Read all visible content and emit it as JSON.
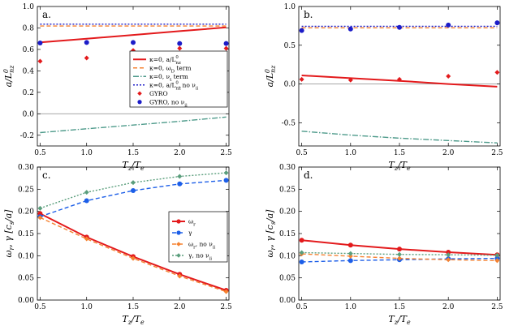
{
  "chart_data": [
    {
      "type": "line",
      "panel_label": "a.",
      "xlabel": "T_z/T_e",
      "ylabel": "a/L_nz^0",
      "xlim": [
        0.47,
        2.53
      ],
      "ylim": [
        -0.3,
        1.0
      ],
      "xticks": [
        "0.5",
        "1.0",
        "1.5",
        "2.0",
        "2.5"
      ],
      "xtick_values": [
        0.5,
        1.0,
        1.5,
        2.0,
        2.5
      ],
      "yticks": [
        "-0.2",
        "0.0",
        "0.2",
        "0.4",
        "0.6",
        "0.8",
        "1.0"
      ],
      "ytick_values": [
        -0.2,
        0.0,
        0.2,
        0.4,
        0.6,
        0.8,
        1.0
      ],
      "zero_line": true,
      "legend": "mid-right",
      "series": [
        {
          "name": "κ=0, a/L_nz^0",
          "style": "solid",
          "color": "#e31a1c",
          "x": [
            0.5,
            1.0,
            1.5,
            2.0,
            2.5
          ],
          "values": [
            0.665,
            0.7,
            0.735,
            0.77,
            0.805
          ]
        },
        {
          "name": "κ=0, ω_D term",
          "style": "dashed",
          "color": "#f58231",
          "x": [
            0.5,
            1.0,
            1.5,
            2.0,
            2.5
          ],
          "values": [
            0.818,
            0.818,
            0.818,
            0.818,
            0.818
          ]
        },
        {
          "name": "κ=0, ν_t term",
          "style": "dashdot",
          "color": "#4d9a8a",
          "x": [
            0.5,
            1.0,
            1.5,
            2.0,
            2.5
          ],
          "values": [
            -0.175,
            -0.14,
            -0.105,
            -0.07,
            -0.03
          ]
        },
        {
          "name": "κ=0, a/L_nz^0, no ν_ii",
          "style": "dotted",
          "color": "#1c1cc8",
          "x": [
            0.5,
            1.0,
            1.5,
            2.0,
            2.5
          ],
          "values": [
            0.835,
            0.835,
            0.835,
            0.835,
            0.835
          ]
        },
        {
          "name": "GYRO",
          "style": "diamond",
          "color": "#e31a1c",
          "x": [
            0.5,
            1.0,
            1.5,
            2.0,
            2.5
          ],
          "values": [
            0.49,
            0.52,
            0.59,
            0.61,
            0.61
          ]
        },
        {
          "name": "GYRO, no ν_ii",
          "style": "circle",
          "color": "#1c1cc8",
          "x": [
            0.5,
            1.0,
            1.5,
            2.0,
            2.5
          ],
          "values": [
            0.66,
            0.665,
            0.665,
            0.655,
            0.655
          ]
        }
      ]
    },
    {
      "type": "line",
      "panel_label": "b.",
      "xlabel": "T_z/T_e",
      "ylabel": "a/L_nz^0",
      "xlim": [
        0.47,
        2.53
      ],
      "ylim": [
        -0.8,
        1.0
      ],
      "xticks": [
        "0.5",
        "1.0",
        "1.5",
        "2.0",
        "2.5"
      ],
      "xtick_values": [
        0.5,
        1.0,
        1.5,
        2.0,
        2.5
      ],
      "yticks": [
        "-0.5",
        "0.0",
        "0.5",
        "1.0"
      ],
      "ytick_values": [
        -0.5,
        0.0,
        0.5,
        1.0
      ],
      "zero_line": true,
      "series": [
        {
          "name": "κ=0, a/L_nz^0",
          "style": "solid",
          "color": "#e31a1c",
          "x": [
            0.5,
            1.0,
            1.5,
            2.0,
            2.5
          ],
          "values": [
            0.11,
            0.075,
            0.04,
            0.0,
            -0.035
          ]
        },
        {
          "name": "κ=0, ω_D term",
          "style": "dashed",
          "color": "#f58231",
          "x": [
            0.5,
            1.0,
            1.5,
            2.0,
            2.5
          ],
          "values": [
            0.725,
            0.725,
            0.725,
            0.725,
            0.725
          ]
        },
        {
          "name": "κ=0, ν_t term",
          "style": "dashdot",
          "color": "#4d9a8a",
          "x": [
            0.5,
            1.0,
            1.5,
            2.0,
            2.5
          ],
          "values": [
            -0.61,
            -0.66,
            -0.7,
            -0.73,
            -0.76
          ]
        },
        {
          "name": "κ=0, a/L_nz^0, no ν_ii",
          "style": "dotted",
          "color": "#1c1cc8",
          "x": [
            0.5,
            1.0,
            1.5,
            2.0,
            2.5
          ],
          "values": [
            0.745,
            0.745,
            0.745,
            0.745,
            0.745
          ]
        },
        {
          "name": "GYRO",
          "style": "diamond",
          "color": "#e31a1c",
          "x": [
            0.5,
            1.0,
            1.5,
            2.0,
            2.5
          ],
          "values": [
            0.06,
            0.05,
            0.06,
            0.1,
            0.15
          ]
        },
        {
          "name": "GYRO, no ν_ii",
          "style": "circle",
          "color": "#1c1cc8",
          "x": [
            0.5,
            1.0,
            1.5,
            2.0,
            2.5
          ],
          "values": [
            0.69,
            0.71,
            0.73,
            0.76,
            0.79
          ]
        }
      ]
    },
    {
      "type": "line",
      "panel_label": "c.",
      "xlabel": "T_z/T_e",
      "ylabel": "ω_r, γ [c_s/a]",
      "xlim": [
        0.47,
        2.53
      ],
      "ylim": [
        0.0,
        0.3
      ],
      "xticks": [
        "0.5",
        "1.0",
        "1.5",
        "2.0",
        "2.5"
      ],
      "xtick_values": [
        0.5,
        1.0,
        1.5,
        2.0,
        2.5
      ],
      "yticks": [
        "0.00",
        "0.05",
        "0.10",
        "0.15",
        "0.20",
        "0.25",
        "0.30"
      ],
      "ytick_values": [
        0.0,
        0.05,
        0.1,
        0.15,
        0.2,
        0.25,
        0.3
      ],
      "legend": "mid-right",
      "series": [
        {
          "name": "ω_r",
          "style": "solid-dot",
          "color": "#e31a1c",
          "x": [
            0.5,
            1.0,
            1.5,
            2.0,
            2.5
          ],
          "values": [
            0.195,
            0.142,
            0.098,
            0.058,
            0.022
          ]
        },
        {
          "name": "γ",
          "style": "dashed-dot",
          "color": "#1c5ee8",
          "x": [
            0.5,
            1.0,
            1.5,
            2.0,
            2.5
          ],
          "values": [
            0.188,
            0.224,
            0.247,
            0.262,
            0.27
          ]
        },
        {
          "name": "ω_r, no ν_ii",
          "style": "dashed-diamond",
          "color": "#f58231",
          "x": [
            0.5,
            1.0,
            1.5,
            2.0,
            2.5
          ],
          "values": [
            0.186,
            0.138,
            0.094,
            0.054,
            0.019
          ]
        },
        {
          "name": "γ, no ν_ii",
          "style": "dotted-diamond",
          "color": "#5a9e7c",
          "x": [
            0.5,
            1.0,
            1.5,
            2.0,
            2.5
          ],
          "values": [
            0.207,
            0.243,
            0.265,
            0.279,
            0.287
          ]
        }
      ]
    },
    {
      "type": "line",
      "panel_label": "d.",
      "xlabel": "T_z/T_e",
      "ylabel": "ω_r, γ [c_s/a]",
      "xlim": [
        0.47,
        2.53
      ],
      "ylim": [
        0.0,
        0.3
      ],
      "xticks": [
        "0.5",
        "1.0",
        "1.5",
        "2.0",
        "2.5"
      ],
      "xtick_values": [
        0.5,
        1.0,
        1.5,
        2.0,
        2.5
      ],
      "yticks": [
        "0.00",
        "0.05",
        "0.10",
        "0.15",
        "0.20",
        "0.25",
        "0.30"
      ],
      "ytick_values": [
        0.0,
        0.05,
        0.1,
        0.15,
        0.2,
        0.25,
        0.3
      ],
      "series": [
        {
          "name": "ω_r",
          "style": "solid-dot",
          "color": "#e31a1c",
          "x": [
            0.5,
            1.0,
            1.5,
            2.0,
            2.5
          ],
          "values": [
            0.135,
            0.124,
            0.115,
            0.108,
            0.102
          ]
        },
        {
          "name": "γ",
          "style": "dashed-dot",
          "color": "#1c5ee8",
          "x": [
            0.5,
            1.0,
            1.5,
            2.0,
            2.5
          ],
          "values": [
            0.086,
            0.089,
            0.091,
            0.093,
            0.094
          ]
        },
        {
          "name": "ω_r, no ν_ii",
          "style": "dashed-diamond",
          "color": "#f58231",
          "x": [
            0.5,
            1.0,
            1.5,
            2.0,
            2.5
          ],
          "values": [
            0.104,
            0.099,
            0.094,
            0.091,
            0.089
          ]
        },
        {
          "name": "γ, no ν_ii",
          "style": "dotted-diamond",
          "color": "#5a9e7c",
          "x": [
            0.5,
            1.0,
            1.5,
            2.0,
            2.5
          ],
          "values": [
            0.107,
            0.105,
            0.103,
            0.102,
            0.101
          ]
        }
      ]
    }
  ]
}
